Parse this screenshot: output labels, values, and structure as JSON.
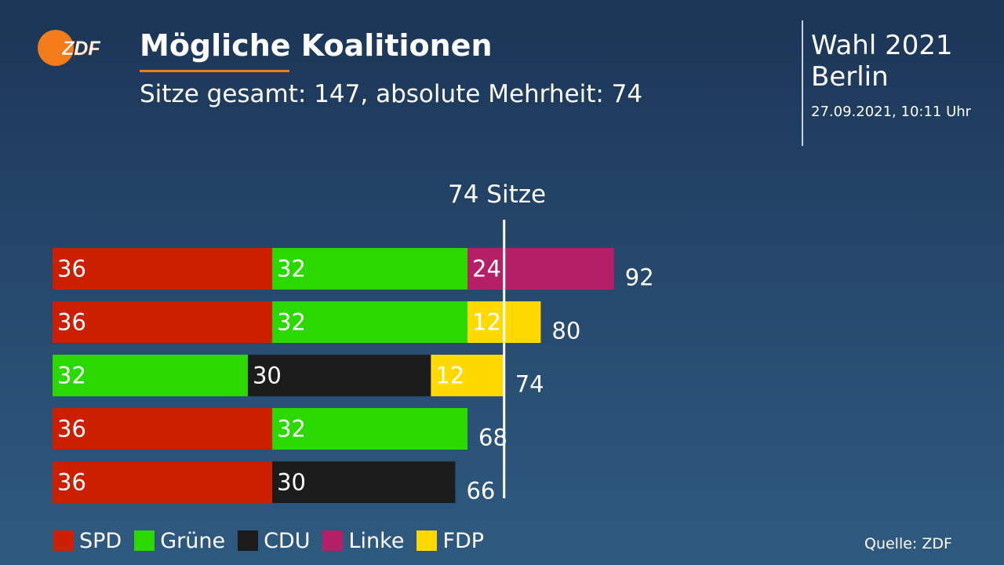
{
  "logo": {
    "text": "ZDF",
    "color": "#f27b1a"
  },
  "header": {
    "title": "Mögliche Koalitionen",
    "subtitle": "Sitze gesamt: 147, absolute Mehrheit: 74"
  },
  "election": {
    "title": "Wahl 2021",
    "region": "Berlin",
    "timestamp": "27.09.2021, 10:11 Uhr"
  },
  "parties": [
    {
      "name": "SPD",
      "color": "#cc1f00"
    },
    {
      "name": "Grüne",
      "color": "#2bd900"
    },
    {
      "name": "CDU",
      "color": "#1c1c1c"
    },
    {
      "name": "Linke",
      "color": "#b41f68"
    },
    {
      "name": "FDP",
      "color": "#ffd900"
    }
  ],
  "chart_data": {
    "type": "bar",
    "orientation": "horizontal",
    "stacked": true,
    "title": "Mögliche Koalitionen",
    "threshold": {
      "value": 74,
      "label": "74 Sitze"
    },
    "xlim": [
      0,
      147
    ],
    "rows": [
      {
        "segments": [
          {
            "party": "SPD",
            "value": 36
          },
          {
            "party": "Grüne",
            "value": 32
          },
          {
            "party": "Linke",
            "value": 24
          }
        ],
        "total": 92
      },
      {
        "segments": [
          {
            "party": "SPD",
            "value": 36
          },
          {
            "party": "Grüne",
            "value": 32
          },
          {
            "party": "FDP",
            "value": 12
          }
        ],
        "total": 80
      },
      {
        "segments": [
          {
            "party": "Grüne",
            "value": 32
          },
          {
            "party": "CDU",
            "value": 30
          },
          {
            "party": "FDP",
            "value": 12
          }
        ],
        "total": 74
      },
      {
        "segments": [
          {
            "party": "SPD",
            "value": 36
          },
          {
            "party": "Grüne",
            "value": 32
          }
        ],
        "total": 68
      },
      {
        "segments": [
          {
            "party": "SPD",
            "value": 36
          },
          {
            "party": "CDU",
            "value": 30
          }
        ],
        "total": 66
      }
    ],
    "legend": [
      "SPD",
      "Grüne",
      "CDU",
      "Linke",
      "FDP"
    ]
  },
  "source": "Quelle: ZDF"
}
